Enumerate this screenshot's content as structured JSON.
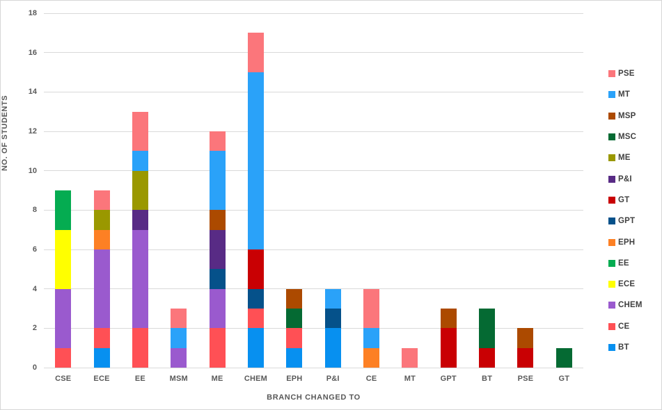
{
  "chart_data": {
    "type": "bar",
    "stacked": true,
    "xlabel": "BRANCH CHANGED TO",
    "ylabel": "NO. OF STUDENTS",
    "ylim": [
      0,
      18
    ],
    "ytick_step": 2,
    "grid": true,
    "grid_color": "#d9d9d9",
    "text_color": "#595959",
    "legend_position": "right",
    "legend_order_top_to_bottom": [
      "PSE",
      "MT",
      "MSP",
      "MSC",
      "ME",
      "P&I",
      "GT",
      "GPT",
      "EPH",
      "EE",
      "ECE",
      "CHEM",
      "CE",
      "BT"
    ],
    "categories": [
      "CSE",
      "ECE",
      "EE",
      "MSM",
      "ME",
      "CHEM",
      "EPH",
      "P&I",
      "CE",
      "MT",
      "GPT",
      "BT",
      "PSE",
      "GT"
    ],
    "series": [
      {
        "name": "BT",
        "color": "#0790f0",
        "values": [
          0,
          1,
          0,
          0,
          0,
          2,
          1,
          2,
          0,
          0,
          0,
          0,
          0,
          0
        ]
      },
      {
        "name": "CE",
        "color": "#ff5055",
        "values": [
          1,
          1,
          2,
          0,
          2,
          1,
          1,
          0,
          0,
          0,
          0,
          0,
          0,
          0
        ]
      },
      {
        "name": "CHEM",
        "color": "#9a5ace",
        "values": [
          3,
          4,
          5,
          1,
          2,
          0,
          0,
          0,
          0,
          0,
          0,
          0,
          0,
          0
        ]
      },
      {
        "name": "ECE",
        "color": "#ffff00",
        "values": [
          3,
          0,
          0,
          0,
          0,
          0,
          0,
          0,
          0,
          0,
          0,
          0,
          0,
          0
        ]
      },
      {
        "name": "EE",
        "color": "#05ac51",
        "values": [
          2,
          0,
          0,
          0,
          0,
          0,
          0,
          0,
          0,
          0,
          0,
          0,
          0,
          0
        ]
      },
      {
        "name": "EPH",
        "color": "#fd8024",
        "values": [
          0,
          1,
          0,
          0,
          0,
          0,
          0,
          0,
          1,
          0,
          0,
          0,
          0,
          0
        ]
      },
      {
        "name": "GPT",
        "color": "#05518a",
        "values": [
          0,
          0,
          0,
          0,
          1,
          1,
          0,
          1,
          0,
          0,
          0,
          0,
          0,
          0
        ]
      },
      {
        "name": "GT",
        "color": "#c90003",
        "values": [
          0,
          0,
          0,
          0,
          0,
          2,
          0,
          0,
          0,
          0,
          2,
          1,
          1,
          0
        ]
      },
      {
        "name": "P&I",
        "color": "#582b85",
        "values": [
          0,
          0,
          1,
          0,
          2,
          0,
          0,
          0,
          0,
          0,
          0,
          0,
          0,
          0
        ]
      },
      {
        "name": "ME",
        "color": "#9a9800",
        "values": [
          0,
          1,
          2,
          0,
          0,
          0,
          0,
          0,
          0,
          0,
          0,
          0,
          0,
          0
        ]
      },
      {
        "name": "MSC",
        "color": "#056a33",
        "values": [
          0,
          0,
          0,
          0,
          0,
          0,
          1,
          0,
          0,
          0,
          0,
          2,
          0,
          1
        ]
      },
      {
        "name": "MSP",
        "color": "#ac4a00",
        "values": [
          0,
          0,
          0,
          0,
          1,
          0,
          1,
          0,
          0,
          0,
          1,
          0,
          1,
          0
        ]
      },
      {
        "name": "MT",
        "color": "#2aa2f9",
        "values": [
          0,
          0,
          1,
          1,
          3,
          9,
          0,
          1,
          1,
          0,
          0,
          0,
          0,
          0
        ]
      },
      {
        "name": "PSE",
        "color": "#fb767b",
        "values": [
          0,
          1,
          2,
          1,
          1,
          2,
          0,
          0,
          2,
          1,
          0,
          0,
          0,
          0
        ]
      }
    ]
  }
}
